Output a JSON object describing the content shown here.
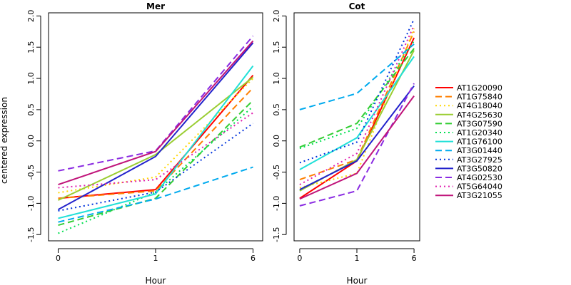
{
  "chart_data": {
    "type": "line",
    "ylabel": "centered expression",
    "xlabel": "Hour",
    "x": [
      "0",
      "1",
      "6"
    ],
    "ylim": [
      -1.6,
      2.05
    ],
    "yticks": [
      -1.5,
      -1.0,
      -0.5,
      0.0,
      0.5,
      1.0,
      1.5,
      2.0
    ],
    "ytick_labels": [
      "-1.5",
      "-1.0",
      "-0.5",
      "0.0",
      "0.5",
      "1.0",
      "1.5",
      "2.0"
    ],
    "legend_position": "right",
    "series": [
      {
        "name": "AT1G20090",
        "color": "#ff0000",
        "dash": "solid"
      },
      {
        "name": "AT1G75840",
        "color": "#ff7f00",
        "dash": "dashed"
      },
      {
        "name": "AT4G18040",
        "color": "#ffd700",
        "dash": "dotted"
      },
      {
        "name": "AT4G25630",
        "color": "#9acd32",
        "dash": "solid"
      },
      {
        "name": "AT3G07590",
        "color": "#32cd32",
        "dash": "dashed"
      },
      {
        "name": "AT1G20340",
        "color": "#00e050",
        "dash": "dotted"
      },
      {
        "name": "AT1G76100",
        "color": "#20e0d8",
        "dash": "solid"
      },
      {
        "name": "AT3G01440",
        "color": "#00aaee",
        "dash": "dashed"
      },
      {
        "name": "AT3G27925",
        "color": "#0033dd",
        "dash": "dotted"
      },
      {
        "name": "AT3G50820",
        "color": "#2222cc",
        "dash": "solid"
      },
      {
        "name": "AT4G02530",
        "color": "#8a2be2",
        "dash": "dashed"
      },
      {
        "name": "AT5G64040",
        "color": "#e020b0",
        "dash": "dotted"
      },
      {
        "name": "AT3G21055",
        "color": "#c0147a",
        "dash": "solid"
      }
    ],
    "panels": [
      {
        "title": "Mer",
        "values": [
          [
            -0.92,
            -0.78,
            1.05
          ],
          [
            -0.92,
            -0.8,
            0.85
          ],
          [
            -0.83,
            -0.58,
            1.0
          ],
          [
            -0.95,
            -0.22,
            1.02
          ],
          [
            -1.35,
            -0.92,
            0.65
          ],
          [
            -1.48,
            -0.82,
            0.55
          ],
          [
            -1.24,
            -0.85,
            1.2
          ],
          [
            -1.3,
            -0.93,
            -0.42
          ],
          [
            -1.12,
            -0.82,
            0.28
          ],
          [
            -1.1,
            -0.25,
            1.57
          ],
          [
            -0.48,
            -0.16,
            1.68
          ],
          [
            -0.75,
            -0.62,
            0.45
          ],
          [
            -0.7,
            -0.17,
            1.6
          ]
        ]
      },
      {
        "title": "Cot",
        "values": [
          [
            -0.92,
            -0.32,
            1.65
          ],
          [
            -0.62,
            -0.3,
            1.75
          ],
          [
            -0.75,
            -0.52,
            1.8
          ],
          [
            -0.8,
            -0.3,
            1.45
          ],
          [
            -0.1,
            0.28,
            1.48
          ],
          [
            -0.12,
            0.2,
            1.6
          ],
          [
            -0.46,
            0.05,
            1.35
          ],
          [
            0.5,
            0.76,
            1.55
          ],
          [
            -0.35,
            -0.02,
            1.95
          ],
          [
            -0.78,
            -0.32,
            0.88
          ],
          [
            -1.04,
            -0.8,
            0.92
          ],
          [
            -0.7,
            -0.2,
            1.85
          ],
          [
            -0.93,
            -0.52,
            0.72
          ]
        ]
      }
    ]
  }
}
